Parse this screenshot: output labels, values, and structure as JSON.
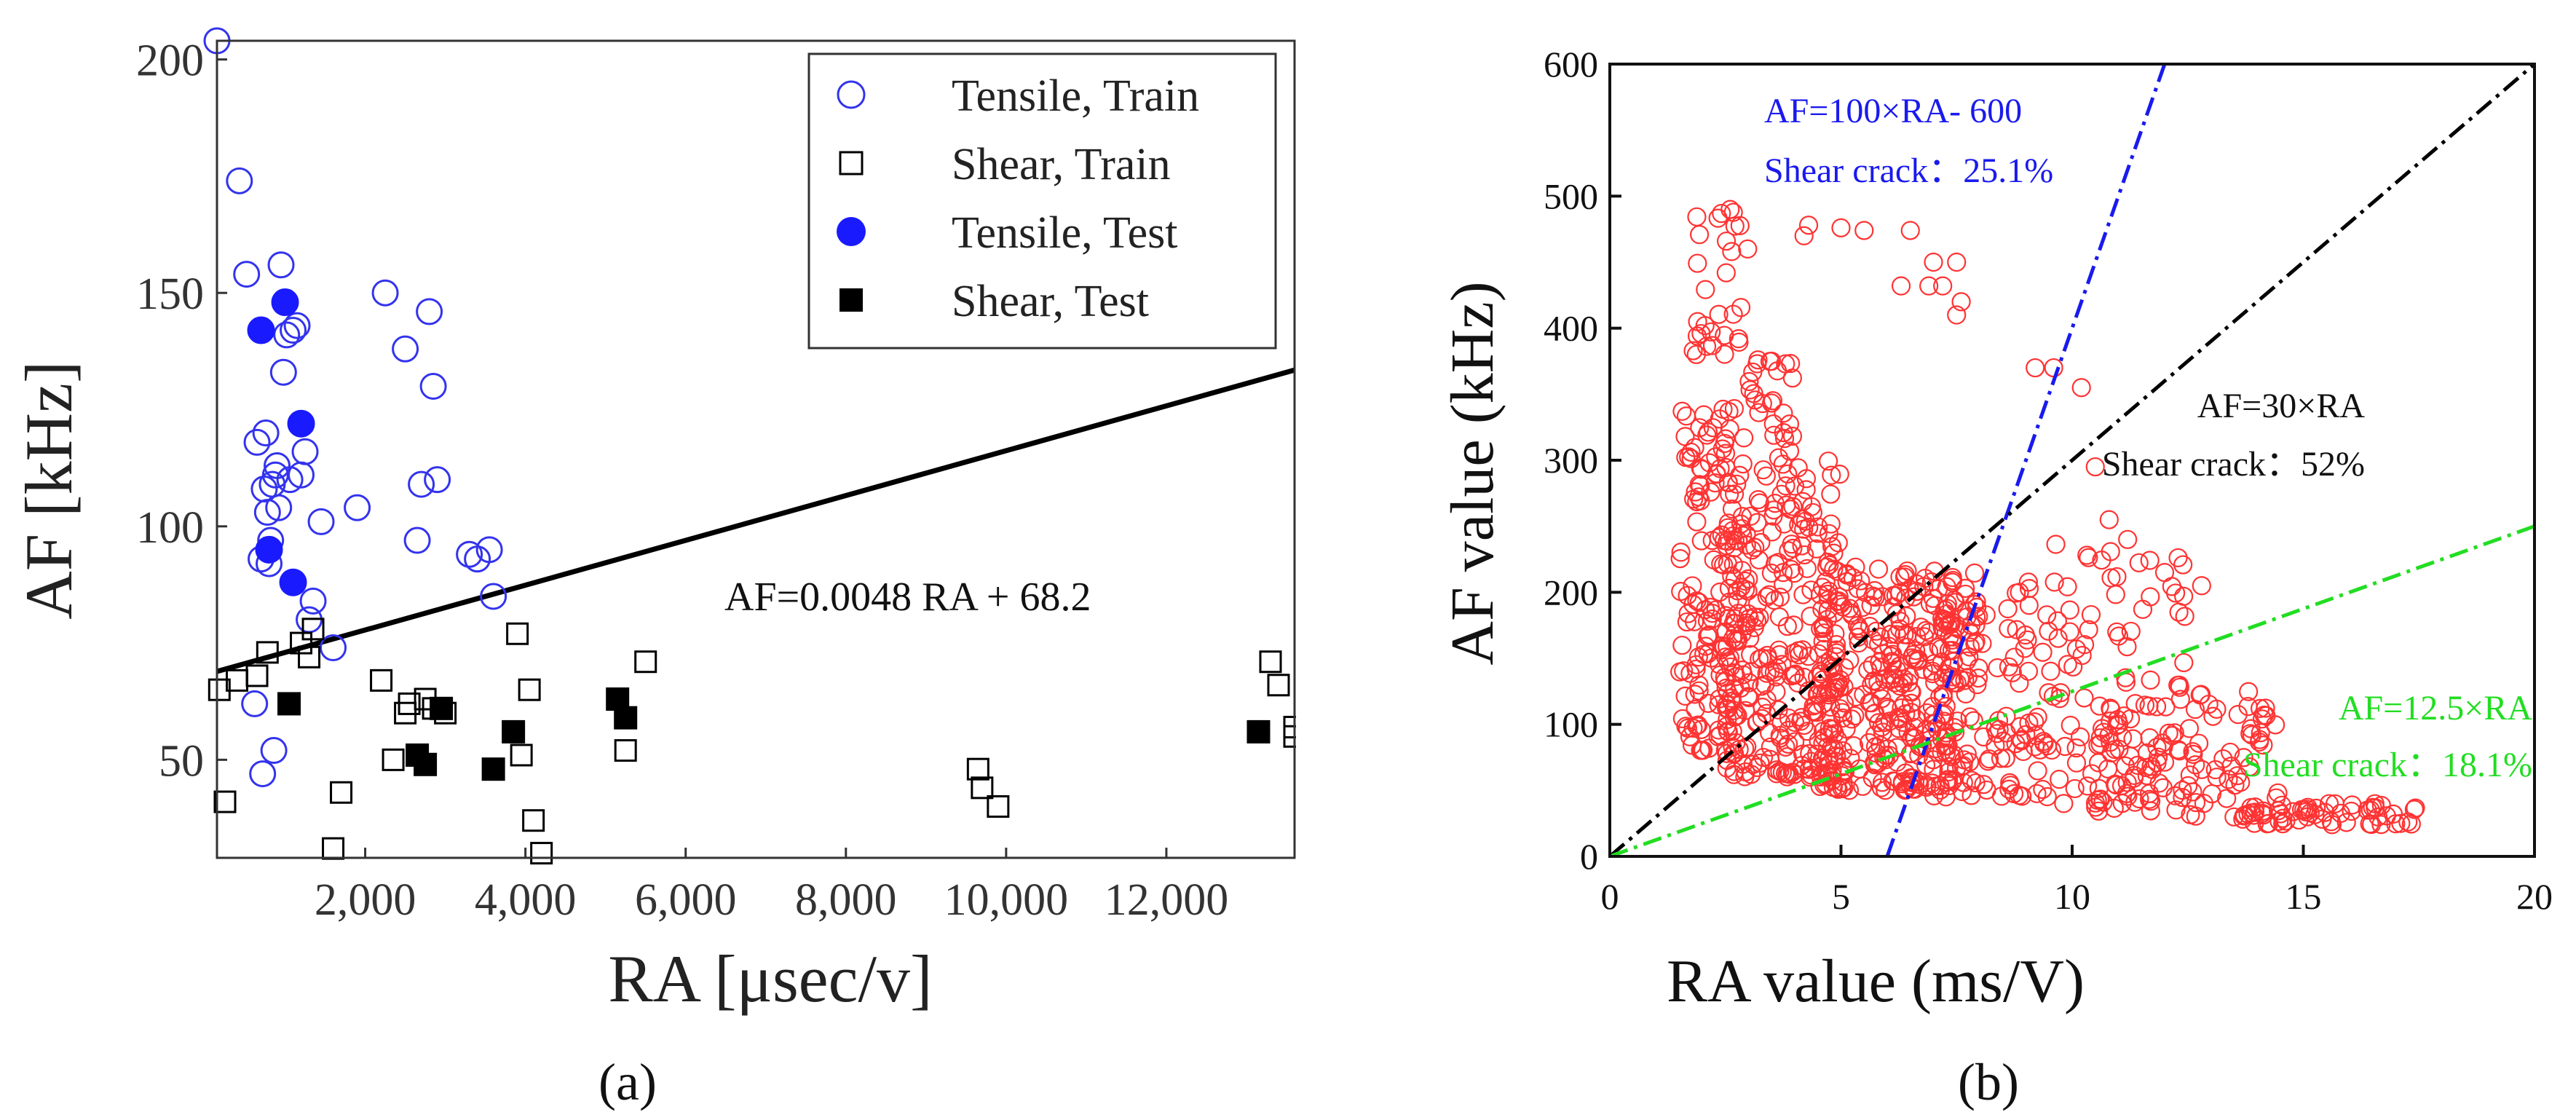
{
  "chart_data": [
    {
      "type": "scatter",
      "panel_label": "(a)",
      "xlabel": "RA [μsec/v]",
      "ylabel": "AF [kHz]",
      "xlim": [
        150,
        13600
      ],
      "ylim": [
        29,
        204
      ],
      "xticks": [
        2000,
        4000,
        6000,
        8000,
        10000,
        12000
      ],
      "xtick_labels": [
        "2,000",
        "4,000",
        "6,000",
        "8,000",
        "10,000",
        "12,000"
      ],
      "yticks": [
        50,
        100,
        150,
        200
      ],
      "ytick_labels": [
        "50",
        "100",
        "150",
        "200"
      ],
      "legend_position": "top-right",
      "colors": {
        "tensile": "#1a1aff",
        "shear": "#000000"
      },
      "trendline": {
        "label": "AF=0.0048 RA + 68.2",
        "slope": 0.0048,
        "intercept": 68.2
      },
      "series": [
        {
          "name": "Tensile, Train",
          "marker": "open-circle",
          "color": "#3333ee",
          "x": [
            150,
            430,
            520,
            620,
            650,
            700,
            720,
            740,
            760,
            780,
            800,
            820,
            840,
            860,
            880,
            900,
            920,
            950,
            980,
            1020,
            1060,
            1100,
            1150,
            1200,
            1250,
            1300,
            1350,
            1450,
            1600,
            1900,
            2250,
            2500,
            2650,
            2700,
            2850,
            2800,
            2900,
            3300,
            3400,
            3550,
            3600
          ],
          "y": [
            204,
            174,
            154,
            62,
            118,
            93,
            47,
            108,
            120,
            103,
            92,
            97,
            109,
            52,
            111,
            113,
            104,
            156,
            133,
            141,
            110,
            142,
            143,
            111,
            116,
            80,
            84,
            101,
            74,
            104,
            150,
            138,
            97,
            109,
            130,
            146,
            110,
            94,
            93,
            95,
            85
          ]
        },
        {
          "name": "Shear, Train",
          "marker": "open-square",
          "color": "#000000",
          "x": [
            180,
            250,
            400,
            650,
            780,
            1200,
            1300,
            1350,
            1700,
            1600,
            2200,
            2350,
            2500,
            2550,
            2750,
            2850,
            3000,
            3900,
            3950,
            4050,
            4100,
            4200,
            5250,
            5500,
            9650,
            9700,
            9900,
            13300,
            13400,
            13600,
            13600
          ],
          "y": [
            65,
            41,
            67,
            68,
            73,
            75,
            72,
            78,
            43,
            31,
            67,
            50,
            60,
            62,
            63,
            61,
            60,
            77,
            51,
            65,
            37,
            30,
            52,
            71,
            48,
            44,
            40,
            71,
            66,
            55,
            57
          ]
        },
        {
          "name": "Tensile, Test",
          "marker": "filled-circle",
          "color": "#1a1aff",
          "x": [
            700,
            800,
            1000,
            1100,
            1200
          ],
          "y": [
            142,
            95,
            148,
            88,
            122
          ]
        },
        {
          "name": "Shear, Test",
          "marker": "filled-square",
          "color": "#000000",
          "x": [
            1050,
            2650,
            2750,
            2950,
            3600,
            3850,
            5150,
            5250,
            13150
          ],
          "y": [
            62,
            51,
            49,
            61,
            48,
            56,
            63,
            59,
            56
          ]
        }
      ]
    },
    {
      "type": "scatter",
      "panel_label": "(b)",
      "xlabel": "RA value (ms/V)",
      "ylabel": "AF value (kHz)",
      "xlim": [
        0,
        20
      ],
      "ylim": [
        0,
        600
      ],
      "xticks": [
        0,
        5,
        10,
        15,
        20
      ],
      "xtick_labels": [
        "0",
        "5",
        "10",
        "15",
        "20"
      ],
      "yticks": [
        0,
        100,
        200,
        300,
        400,
        500,
        600
      ],
      "ytick_labels": [
        "0",
        "100",
        "200",
        "300",
        "400",
        "500",
        "600"
      ],
      "point_color": "#ff3333",
      "point_count_approx": 1200,
      "lines": [
        {
          "equation": "AF=100×RA- 600",
          "slope": 100,
          "intercept": -600,
          "color": "#1a1aee",
          "annotation": "Shear crack：25.1%"
        },
        {
          "equation": "AF=30×RA",
          "slope": 30,
          "intercept": 0,
          "color": "#000000",
          "annotation": "Shear crack：52%"
        },
        {
          "equation": "AF=12.5×RA",
          "slope": 12.5,
          "intercept": 0,
          "color": "#22dd22",
          "annotation": "Shear crack：18.1%"
        }
      ],
      "clusters": [
        {
          "x_range": [
            1.5,
            3.0
          ],
          "y_range": [
            80,
            340
          ],
          "n": 160
        },
        {
          "x_range": [
            2.5,
            5.0
          ],
          "y_range": [
            60,
            300
          ],
          "n": 260
        },
        {
          "x_range": [
            4.5,
            7.5
          ],
          "y_range": [
            50,
            220
          ],
          "n": 280
        },
        {
          "x_range": [
            7.0,
            9.5
          ],
          "y_range": [
            45,
            210
          ],
          "n": 110
        },
        {
          "x_range": [
            9.5,
            12.5
          ],
          "y_range": [
            40,
            240
          ],
          "n": 90
        },
        {
          "x_range": [
            10.5,
            14.5
          ],
          "y_range": [
            30,
            130
          ],
          "n": 100
        },
        {
          "x_range": [
            13.5,
            17.5
          ],
          "y_range": [
            24,
            40
          ],
          "n": 60
        },
        {
          "x_range": [
            1.8,
            3.0
          ],
          "y_range": [
            380,
            490
          ],
          "n": 30
        },
        {
          "x_range": [
            3.0,
            4.0
          ],
          "y_range": [
            300,
            380
          ],
          "n": 25
        },
        {
          "x_range": [
            5.5,
            8.0
          ],
          "y_range": [
            130,
            220
          ],
          "n": 50
        }
      ],
      "extra_points": [
        [
          4.3,
          478
        ],
        [
          5.0,
          476
        ],
        [
          5.5,
          474
        ],
        [
          6.5,
          474
        ],
        [
          7.0,
          450
        ],
        [
          7.5,
          450
        ],
        [
          7.2,
          432
        ],
        [
          7.5,
          410
        ],
        [
          7.6,
          420
        ],
        [
          9.2,
          370
        ],
        [
          9.6,
          370
        ],
        [
          10.2,
          355
        ],
        [
          10.5,
          295
        ],
        [
          3.5,
          375
        ],
        [
          4.2,
          470
        ],
        [
          6.3,
          432
        ],
        [
          6.9,
          432
        ],
        [
          11.2,
          240
        ],
        [
          10.8,
          255
        ],
        [
          12.0,
          215
        ],
        [
          12.8,
          205
        ]
      ]
    }
  ]
}
